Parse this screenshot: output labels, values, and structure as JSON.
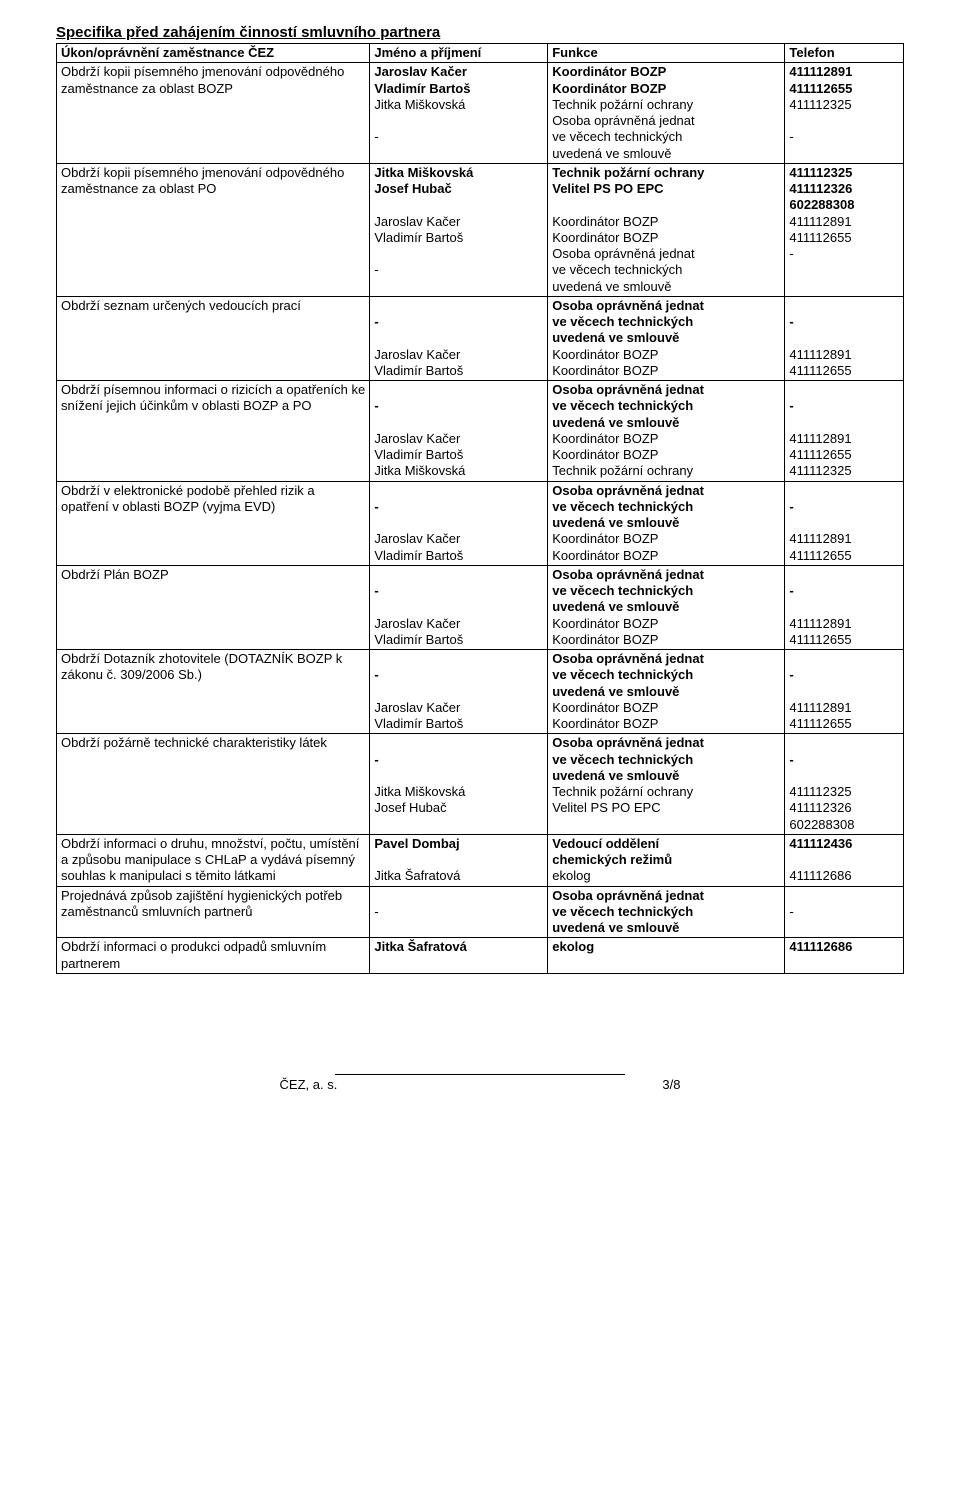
{
  "title": "Specifika před zahájením činností smluvního partnera",
  "headers": {
    "ukon": "Úkon/oprávnění zaměstnance ČEZ",
    "jmeno": "Jméno a příjmení",
    "funkce": "Funkce",
    "telefon": "Telefon"
  },
  "rows": [
    {
      "ukon": [
        {
          "t": "Obdrží kopii písemného jmenování odpovědného zaměstnance za oblast BOZP",
          "b": false
        }
      ],
      "jmeno": [
        {
          "t": "Jaroslav Kačer",
          "b": true
        },
        {
          "t": "Vladimír Bartoš",
          "b": true
        },
        {
          "t": "Jitka Miškovská",
          "b": false
        },
        {
          "t": "",
          "b": false
        },
        {
          "t": "-",
          "b": false
        }
      ],
      "funkce": [
        {
          "t": "Koordinátor BOZP",
          "b": true
        },
        {
          "t": "Koordinátor BOZP",
          "b": true
        },
        {
          "t": "Technik požární ochrany",
          "b": false
        },
        {
          "t": "Osoba oprávněná jednat",
          "b": false
        },
        {
          "t": "ve věcech technických",
          "b": false
        },
        {
          "t": "uvedená ve smlouvě",
          "b": false
        }
      ],
      "telefon": [
        {
          "t": "411112891",
          "b": true
        },
        {
          "t": "411112655",
          "b": true
        },
        {
          "t": "411112325",
          "b": false
        },
        {
          "t": "",
          "b": false
        },
        {
          "t": "-",
          "b": false
        }
      ]
    },
    {
      "ukon": [
        {
          "t": "Obdrží kopii písemného jmenování odpovědného zaměstnance za oblast PO",
          "b": false
        }
      ],
      "jmeno": [
        {
          "t": "Jitka Miškovská",
          "b": true
        },
        {
          "t": "Josef Hubač",
          "b": true
        },
        {
          "t": "",
          "b": false
        },
        {
          "t": "Jaroslav Kačer",
          "b": false
        },
        {
          "t": "Vladimír Bartoš",
          "b": false
        },
        {
          "t": "",
          "b": false
        },
        {
          "t": "-",
          "b": false
        }
      ],
      "funkce": [
        {
          "t": "Technik požární ochrany",
          "b": true
        },
        {
          "t": "Velitel PS PO EPC",
          "b": true
        },
        {
          "t": "",
          "b": false
        },
        {
          "t": "Koordinátor BOZP",
          "b": false
        },
        {
          "t": "Koordinátor BOZP",
          "b": false
        },
        {
          "t": "Osoba oprávněná jednat",
          "b": false
        },
        {
          "t": "ve věcech technických",
          "b": false
        },
        {
          "t": "uvedená ve smlouvě",
          "b": false
        }
      ],
      "telefon": [
        {
          "t": "411112325",
          "b": true
        },
        {
          "t": "411112326",
          "b": true
        },
        {
          "t": "602288308",
          "b": true
        },
        {
          "t": "411112891",
          "b": false
        },
        {
          "t": "411112655",
          "b": false
        },
        {
          "t": "-",
          "b": false
        }
      ]
    },
    {
      "ukon": [
        {
          "t": "Obdrží seznam určených vedoucích prací",
          "b": false
        }
      ],
      "jmeno": [
        {
          "t": "",
          "b": false
        },
        {
          "t": "-",
          "b": true
        },
        {
          "t": "",
          "b": false
        },
        {
          "t": "Jaroslav Kačer",
          "b": false
        },
        {
          "t": "Vladimír Bartoš",
          "b": false
        }
      ],
      "funkce": [
        {
          "t": "Osoba oprávněná jednat",
          "b": true
        },
        {
          "t": "ve věcech technických",
          "b": true
        },
        {
          "t": "uvedená ve smlouvě",
          "b": true
        },
        {
          "t": "Koordinátor BOZP",
          "b": false
        },
        {
          "t": "Koordinátor BOZP",
          "b": false
        }
      ],
      "telefon": [
        {
          "t": "",
          "b": false
        },
        {
          "t": "-",
          "b": true
        },
        {
          "t": "",
          "b": false
        },
        {
          "t": "411112891",
          "b": false
        },
        {
          "t": "411112655",
          "b": false
        }
      ]
    },
    {
      "ukon": [
        {
          "t": "Obdrží písemnou informaci o rizicích a opatřeních ke snížení jejich účinkům v oblasti BOZP a PO",
          "b": false
        }
      ],
      "jmeno": [
        {
          "t": "",
          "b": false
        },
        {
          "t": "-",
          "b": true
        },
        {
          "t": "",
          "b": false
        },
        {
          "t": "Jaroslav Kačer",
          "b": false
        },
        {
          "t": "Vladimír Bartoš",
          "b": false
        },
        {
          "t": "Jitka Miškovská",
          "b": false
        }
      ],
      "funkce": [
        {
          "t": "Osoba oprávněná jednat",
          "b": true
        },
        {
          "t": "ve věcech technických",
          "b": true
        },
        {
          "t": "uvedená ve smlouvě",
          "b": true
        },
        {
          "t": "Koordinátor BOZP",
          "b": false
        },
        {
          "t": "Koordinátor BOZP",
          "b": false
        },
        {
          "t": "Technik požární ochrany",
          "b": false
        }
      ],
      "telefon": [
        {
          "t": "",
          "b": false
        },
        {
          "t": "-",
          "b": true
        },
        {
          "t": "",
          "b": false
        },
        {
          "t": "411112891",
          "b": false
        },
        {
          "t": "411112655",
          "b": false
        },
        {
          "t": "411112325",
          "b": false
        }
      ]
    },
    {
      "ukon": [
        {
          "t": "Obdrží v elektronické podobě přehled rizik a opatření v oblasti BOZP (vyjma EVD)",
          "b": false
        }
      ],
      "jmeno": [
        {
          "t": "",
          "b": false
        },
        {
          "t": "-",
          "b": true
        },
        {
          "t": "",
          "b": false
        },
        {
          "t": "Jaroslav Kačer",
          "b": false
        },
        {
          "t": "Vladimír Bartoš",
          "b": false
        }
      ],
      "funkce": [
        {
          "t": "Osoba oprávněná jednat",
          "b": true
        },
        {
          "t": "ve věcech technických",
          "b": true
        },
        {
          "t": "uvedená ve smlouvě",
          "b": true
        },
        {
          "t": "Koordinátor BOZP",
          "b": false
        },
        {
          "t": "Koordinátor BOZP",
          "b": false
        }
      ],
      "telefon": [
        {
          "t": "",
          "b": false
        },
        {
          "t": "-",
          "b": true
        },
        {
          "t": "",
          "b": false
        },
        {
          "t": "411112891",
          "b": false
        },
        {
          "t": "411112655",
          "b": false
        }
      ]
    },
    {
      "ukon": [
        {
          "t": "Obdrží Plán BOZP",
          "b": false
        }
      ],
      "jmeno": [
        {
          "t": "",
          "b": false
        },
        {
          "t": "-",
          "b": true
        },
        {
          "t": "",
          "b": false
        },
        {
          "t": "Jaroslav Kačer",
          "b": false
        },
        {
          "t": "Vladimír Bartoš",
          "b": false
        }
      ],
      "funkce": [
        {
          "t": "Osoba oprávněná jednat",
          "b": true
        },
        {
          "t": "ve věcech technických",
          "b": true
        },
        {
          "t": "uvedená ve smlouvě",
          "b": true
        },
        {
          "t": "Koordinátor BOZP",
          "b": false
        },
        {
          "t": "Koordinátor BOZP",
          "b": false
        }
      ],
      "telefon": [
        {
          "t": "",
          "b": false
        },
        {
          "t": "-",
          "b": true
        },
        {
          "t": "",
          "b": false
        },
        {
          "t": "411112891",
          "b": false
        },
        {
          "t": "411112655",
          "b": false
        }
      ]
    },
    {
      "ukon": [
        {
          "t": "Obdrží Dotazník zhotovitele (DOTAZNÍK BOZP k zákonu č. 309/2006 Sb.)",
          "b": false
        }
      ],
      "jmeno": [
        {
          "t": "",
          "b": false
        },
        {
          "t": "-",
          "b": true
        },
        {
          "t": "",
          "b": false
        },
        {
          "t": "Jaroslav Kačer",
          "b": false
        },
        {
          "t": "Vladimír Bartoš",
          "b": false
        }
      ],
      "funkce": [
        {
          "t": "Osoba oprávněná jednat",
          "b": true
        },
        {
          "t": "ve věcech technických",
          "b": true
        },
        {
          "t": "uvedená ve smlouvě",
          "b": true
        },
        {
          "t": "Koordinátor BOZP",
          "b": false
        },
        {
          "t": "Koordinátor BOZP",
          "b": false
        }
      ],
      "telefon": [
        {
          "t": "",
          "b": false
        },
        {
          "t": "-",
          "b": true
        },
        {
          "t": "",
          "b": false
        },
        {
          "t": "411112891",
          "b": false
        },
        {
          "t": "411112655",
          "b": false
        }
      ]
    },
    {
      "ukon": [
        {
          "t": "Obdrží požárně technické charakteristiky látek",
          "b": false
        }
      ],
      "jmeno": [
        {
          "t": "",
          "b": false
        },
        {
          "t": "-",
          "b": true
        },
        {
          "t": "",
          "b": false
        },
        {
          "t": "Jitka Miškovská",
          "b": false
        },
        {
          "t": "Josef Hubač",
          "b": false
        }
      ],
      "funkce": [
        {
          "t": "Osoba oprávněná jednat",
          "b": true
        },
        {
          "t": "ve věcech technických",
          "b": true
        },
        {
          "t": "uvedená ve smlouvě",
          "b": true
        },
        {
          "t": "Technik požární ochrany",
          "b": false
        },
        {
          "t": "Velitel PS PO EPC",
          "b": false
        }
      ],
      "telefon": [
        {
          "t": "",
          "b": false
        },
        {
          "t": "-",
          "b": true
        },
        {
          "t": "",
          "b": false
        },
        {
          "t": "411112325",
          "b": false
        },
        {
          "t": "411112326",
          "b": false
        },
        {
          "t": "602288308",
          "b": false
        }
      ]
    },
    {
      "ukon": [
        {
          "t": "Obdrží informaci o druhu, množství, počtu, umístění a způsobu manipulace  s CHLaP a vydává písemný souhlas k manipulaci s těmito látkami",
          "b": false
        }
      ],
      "jmeno": [
        {
          "t": "Pavel Dombaj",
          "b": true
        },
        {
          "t": "",
          "b": false
        },
        {
          "t": "Jitka Šafratová",
          "b": false
        }
      ],
      "funkce": [
        {
          "t": "Vedoucí oddělení",
          "b": true
        },
        {
          "t": "chemických režimů",
          "b": true
        },
        {
          "t": "ekolog",
          "b": false
        }
      ],
      "telefon": [
        {
          "t": "411112436",
          "b": true
        },
        {
          "t": "",
          "b": false
        },
        {
          "t": "411112686",
          "b": false
        }
      ]
    },
    {
      "ukon": [
        {
          "t": "Projednává způsob zajištění hygienických potřeb zaměstnanců smluvních partnerů",
          "b": false
        }
      ],
      "jmeno": [
        {
          "t": "",
          "b": false
        },
        {
          "t": "-",
          "b": false
        }
      ],
      "funkce": [
        {
          "t": "Osoba oprávněná jednat",
          "b": true
        },
        {
          "t": "ve věcech technických",
          "b": true
        },
        {
          "t": "uvedená ve smlouvě",
          "b": true
        }
      ],
      "telefon": [
        {
          "t": "",
          "b": false
        },
        {
          "t": "-",
          "b": false
        }
      ]
    },
    {
      "ukon": [
        {
          "t": "Obdrží informaci o produkci odpadů smluvním partnerem",
          "b": false
        }
      ],
      "jmeno": [
        {
          "t": "Jitka Šafratová",
          "b": true
        }
      ],
      "funkce": [
        {
          "t": "ekolog",
          "b": true
        }
      ],
      "telefon": [
        {
          "t": "411112686",
          "b": true
        }
      ]
    }
  ],
  "footer": {
    "company": "ČEZ, a. s.",
    "page": "3/8"
  }
}
